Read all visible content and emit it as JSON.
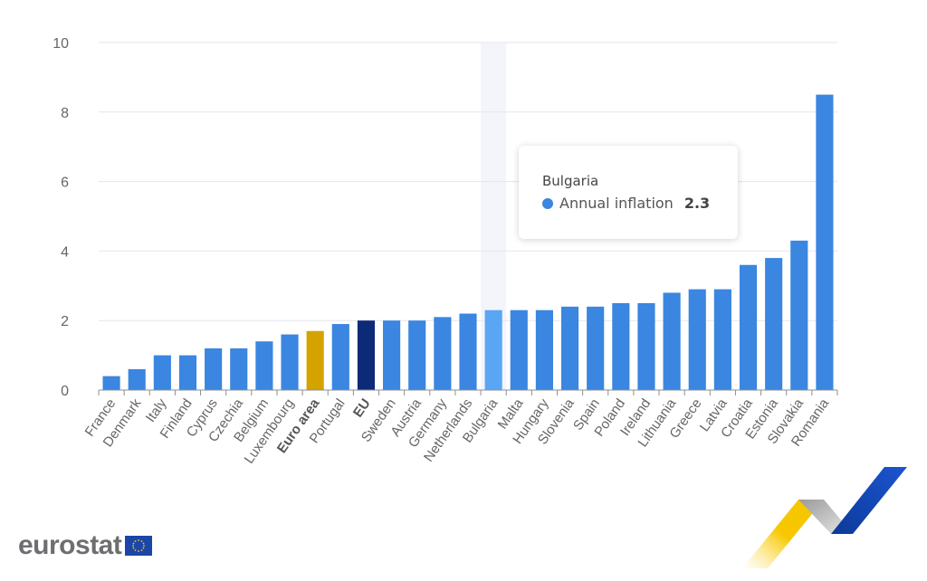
{
  "chart_data": {
    "type": "bar",
    "title": "",
    "xlabel": "",
    "ylabel": "",
    "ylim": [
      0,
      10
    ],
    "yticks": [
      0,
      2,
      4,
      6,
      8,
      10
    ],
    "grid": true,
    "categories": [
      "France",
      "Denmark",
      "Italy",
      "Finland",
      "Cyprus",
      "Czechia",
      "Belgium",
      "Luxembourg",
      "Euro area",
      "Portugal",
      "EU",
      "Sweden",
      "Austria",
      "Germany",
      "Netherlands",
      "Bulgaria",
      "Malta",
      "Hungary",
      "Slovenia",
      "Spain",
      "Poland",
      "Ireland",
      "Lithuania",
      "Greece",
      "Latvia",
      "Croatia",
      "Estonia",
      "Slovakia",
      "Romania"
    ],
    "bold_categories": [
      "Euro area",
      "EU"
    ],
    "series": [
      {
        "name": "Annual inflation",
        "values": [
          0.4,
          0.6,
          1.0,
          1.0,
          1.2,
          1.2,
          1.4,
          1.6,
          1.7,
          1.9,
          2.0,
          2.0,
          2.0,
          2.1,
          2.2,
          2.3,
          2.3,
          2.3,
          2.4,
          2.4,
          2.5,
          2.5,
          2.8,
          2.9,
          2.9,
          3.6,
          3.8,
          4.3,
          8.5
        ]
      }
    ],
    "colors": {
      "default": "#3a86e0",
      "euro_area": "#d4a300",
      "eu": "#0c2a78",
      "highlight": "#5aa6f5",
      "hover_band": "#f3f5fb",
      "grid": "#e3e6ee",
      "axis": "#8a8f99"
    },
    "highlighted": "Bulgaria",
    "tooltip": {
      "title": "Bulgaria",
      "series_label": "Annual inflation",
      "value": "2.3"
    }
  },
  "branding": {
    "logo_text": "eurostat",
    "flag_icon": "eu-flag-icon"
  }
}
